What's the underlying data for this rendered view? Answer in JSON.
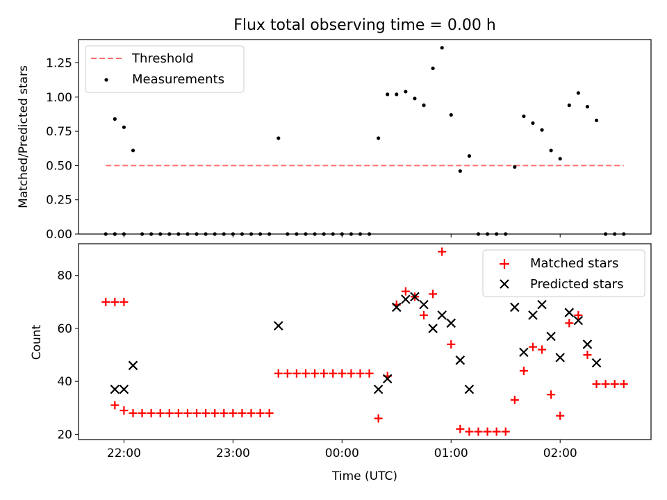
{
  "chart_data": [
    {
      "type": "scatter",
      "title": "Flux total observing time = 0.00 h",
      "xlabel": "",
      "ylabel": "Matched/Predicted stars",
      "ylim": [
        0,
        1.42
      ],
      "yticks": [
        0.0,
        0.25,
        0.5,
        0.75,
        1.0,
        1.25
      ],
      "ytick_labels": [
        "0.00",
        "0.25",
        "0.50",
        "0.75",
        "1.00",
        "1.25"
      ],
      "grid": false,
      "legend_position": "upper-left",
      "series": [
        {
          "name": "Threshold",
          "kind": "line",
          "style": "dashed",
          "color": "#ff7070",
          "x": [
            "21:50",
            "02:35"
          ],
          "y": [
            0.5,
            0.5
          ]
        },
        {
          "name": "Measurements",
          "kind": "scatter",
          "color": "#000000",
          "points": [
            [
              "21:50",
              0.0
            ],
            [
              "21:55",
              0.0
            ],
            [
              "22:00",
              0.0
            ],
            [
              "21:55",
              0.0
            ],
            [
              "21:55",
              0.84
            ],
            [
              "22:00",
              0.78
            ],
            [
              "22:05",
              0.61
            ],
            [
              "22:10",
              0.0
            ],
            [
              "22:15",
              0.0
            ],
            [
              "22:20",
              0.0
            ],
            [
              "22:25",
              0.0
            ],
            [
              "22:30",
              0.0
            ],
            [
              "22:35",
              0.0
            ],
            [
              "22:40",
              0.0
            ],
            [
              "22:45",
              0.0
            ],
            [
              "22:50",
              0.0
            ],
            [
              "22:55",
              0.0
            ],
            [
              "23:00",
              0.0
            ],
            [
              "23:05",
              0.0
            ],
            [
              "23:10",
              0.0
            ],
            [
              "23:15",
              0.0
            ],
            [
              "23:20",
              0.0
            ],
            [
              "23:25",
              0.7
            ],
            [
              "23:30",
              0.0
            ],
            [
              "23:35",
              0.0
            ],
            [
              "23:40",
              0.0
            ],
            [
              "23:45",
              0.0
            ],
            [
              "23:50",
              0.0
            ],
            [
              "23:55",
              0.0
            ],
            [
              "00:00",
              0.0
            ],
            [
              "00:05",
              0.0
            ],
            [
              "00:10",
              0.0
            ],
            [
              "00:15",
              0.0
            ],
            [
              "00:20",
              0.7
            ],
            [
              "00:25",
              1.02
            ],
            [
              "00:30",
              1.02
            ],
            [
              "00:35",
              1.04
            ],
            [
              "00:40",
              0.99
            ],
            [
              "00:45",
              0.94
            ],
            [
              "00:50",
              1.21
            ],
            [
              "00:55",
              1.36
            ],
            [
              "01:00",
              0.87
            ],
            [
              "01:05",
              0.46
            ],
            [
              "01:10",
              0.57
            ],
            [
              "01:15",
              0.0
            ],
            [
              "01:20",
              0.0
            ],
            [
              "01:25",
              0.0
            ],
            [
              "01:30",
              0.0
            ],
            [
              "01:35",
              0.49
            ],
            [
              "01:40",
              0.86
            ],
            [
              "01:45",
              0.81
            ],
            [
              "01:50",
              0.76
            ],
            [
              "01:55",
              0.61
            ],
            [
              "02:00",
              0.55
            ],
            [
              "02:05",
              0.94
            ],
            [
              "02:10",
              1.03
            ],
            [
              "02:15",
              0.93
            ],
            [
              "02:20",
              0.83
            ],
            [
              "02:25",
              0.0
            ],
            [
              "02:30",
              0.0
            ],
            [
              "02:35",
              0.0
            ]
          ]
        }
      ]
    },
    {
      "type": "scatter",
      "title": "",
      "xlabel": "Time (UTC)",
      "ylabel": "Count",
      "ylim": [
        18,
        92
      ],
      "yticks": [
        20,
        40,
        60,
        80
      ],
      "ytick_labels": [
        "20",
        "40",
        "60",
        "80"
      ],
      "xticks": [
        "22:00",
        "23:00",
        "00:00",
        "01:00",
        "02:00"
      ],
      "xlim": [
        "21:35",
        "02:50"
      ],
      "grid": false,
      "legend_position": "upper-right",
      "series": [
        {
          "name": "Matched stars",
          "marker": "+",
          "color": "#ff0000",
          "points": [
            [
              "21:50",
              70
            ],
            [
              "21:55",
              70
            ],
            [
              "22:00",
              70
            ],
            [
              "21:55",
              31
            ],
            [
              "22:00",
              29
            ],
            [
              "22:05",
              28
            ],
            [
              "22:10",
              28
            ],
            [
              "22:15",
              28
            ],
            [
              "22:20",
              28
            ],
            [
              "22:25",
              28
            ],
            [
              "22:30",
              28
            ],
            [
              "22:35",
              28
            ],
            [
              "22:40",
              28
            ],
            [
              "22:45",
              28
            ],
            [
              "22:50",
              28
            ],
            [
              "22:55",
              28
            ],
            [
              "23:00",
              28
            ],
            [
              "23:05",
              28
            ],
            [
              "23:10",
              28
            ],
            [
              "23:15",
              28
            ],
            [
              "23:20",
              28
            ],
            [
              "23:25",
              43
            ],
            [
              "23:30",
              43
            ],
            [
              "23:35",
              43
            ],
            [
              "23:40",
              43
            ],
            [
              "23:45",
              43
            ],
            [
              "23:50",
              43
            ],
            [
              "23:55",
              43
            ],
            [
              "00:00",
              43
            ],
            [
              "00:05",
              43
            ],
            [
              "00:10",
              43
            ],
            [
              "00:15",
              43
            ],
            [
              "00:20",
              26
            ],
            [
              "00:25",
              42
            ],
            [
              "00:30",
              69
            ],
            [
              "00:35",
              74
            ],
            [
              "00:40",
              72
            ],
            [
              "00:45",
              65
            ],
            [
              "00:50",
              73
            ],
            [
              "00:55",
              89
            ],
            [
              "01:00",
              54
            ],
            [
              "01:05",
              22
            ],
            [
              "01:10",
              21
            ],
            [
              "01:15",
              21
            ],
            [
              "01:20",
              21
            ],
            [
              "01:25",
              21
            ],
            [
              "01:30",
              21
            ],
            [
              "01:35",
              33
            ],
            [
              "01:40",
              44
            ],
            [
              "01:45",
              53
            ],
            [
              "01:50",
              52
            ],
            [
              "01:55",
              35
            ],
            [
              "02:00",
              27
            ],
            [
              "02:05",
              62
            ],
            [
              "02:10",
              65
            ],
            [
              "02:15",
              50
            ],
            [
              "02:20",
              39
            ],
            [
              "02:25",
              39
            ],
            [
              "02:30",
              39
            ],
            [
              "02:35",
              39
            ]
          ]
        },
        {
          "name": "Predicted stars",
          "marker": "x",
          "color": "#000000",
          "points": [
            [
              "21:55",
              37
            ],
            [
              "22:00",
              37
            ],
            [
              "22:05",
              46
            ],
            [
              "23:25",
              61
            ],
            [
              "00:20",
              37
            ],
            [
              "00:25",
              41
            ],
            [
              "00:30",
              68
            ],
            [
              "00:35",
              71
            ],
            [
              "00:40",
              72
            ],
            [
              "00:45",
              69
            ],
            [
              "00:50",
              60
            ],
            [
              "00:55",
              65
            ],
            [
              "01:00",
              62
            ],
            [
              "01:05",
              48
            ],
            [
              "01:10",
              37
            ],
            [
              "01:35",
              68
            ],
            [
              "01:40",
              51
            ],
            [
              "01:45",
              65
            ],
            [
              "01:50",
              69
            ],
            [
              "01:55",
              57
            ],
            [
              "02:00",
              49
            ],
            [
              "02:05",
              66
            ],
            [
              "02:10",
              63
            ],
            [
              "02:15",
              54
            ],
            [
              "02:20",
              47
            ]
          ]
        }
      ]
    }
  ]
}
